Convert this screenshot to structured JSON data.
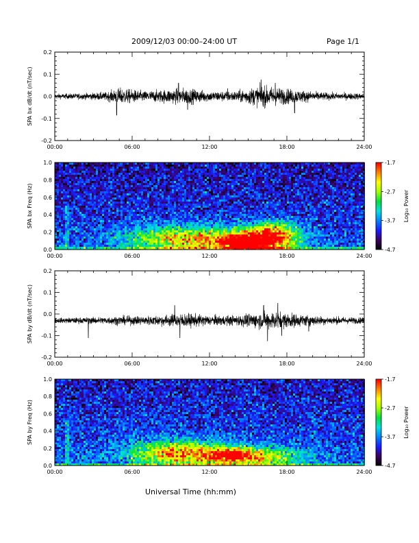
{
  "header": {
    "title": "2009/12/03  00:00–24:00 UT",
    "page": "Page 1/1"
  },
  "footer": {
    "xlabel": "Universal Time (hh:mm)"
  },
  "colors": {
    "trace": "#000000",
    "colormap": [
      "#000000",
      "#3a005a",
      "#1a1aff",
      "#0080ff",
      "#00e0e0",
      "#00e040",
      "#a0ff00",
      "#ffff00",
      "#ff8000",
      "#ff0000"
    ]
  },
  "chart_data": [
    {
      "type": "line",
      "ylabel": "SPA bx dB/dt (nT/sec)",
      "xticks": [
        "00:00",
        "06:00",
        "12:00",
        "18:00",
        "24:00"
      ],
      "xlim": [
        0,
        24
      ],
      "ylim": [
        -0.2,
        0.2
      ],
      "yticks": [
        "-0.2",
        "-0.1",
        "0.0",
        "0.1",
        "0.2"
      ],
      "baseline": 0.0,
      "noise_amplitude_profile": {
        "x": [
          0,
          2,
          4,
          5,
          7,
          9,
          10,
          12,
          14,
          16,
          17,
          19,
          21,
          24
        ],
        "amp": [
          0.012,
          0.014,
          0.02,
          0.04,
          0.025,
          0.035,
          0.04,
          0.025,
          0.025,
          0.05,
          0.045,
          0.03,
          0.018,
          0.015
        ]
      },
      "spikes": [
        {
          "x": 4.8,
          "y": 0.075
        },
        {
          "x": 4.8,
          "y": -0.085
        },
        {
          "x": 9.6,
          "y": 0.06
        },
        {
          "x": 10.3,
          "y": -0.06
        },
        {
          "x": 16.0,
          "y": 0.075
        },
        {
          "x": 16.3,
          "y": -0.05
        },
        {
          "x": 17.1,
          "y": 0.06
        },
        {
          "x": 18.6,
          "y": -0.075
        },
        {
          "x": 13.4,
          "y": 0.035
        }
      ]
    },
    {
      "type": "heatmap",
      "ylabel": "SPA bx Freq (Hz)",
      "xticks": [
        "00:00",
        "06:00",
        "12:00",
        "18:00",
        "24:00"
      ],
      "xlim": [
        0,
        24
      ],
      "ylim": [
        0,
        1.0
      ],
      "yticks": [
        "0.0",
        "0.2",
        "0.4",
        "0.6",
        "0.8",
        "1.0"
      ],
      "colorbar": {
        "label": "Log₁₀ Power",
        "range": [
          -4.7,
          -1.7
        ],
        "ticks": [
          "-1.7",
          "-2.7",
          "-3.7",
          "-4.7"
        ]
      },
      "background_level": -3.85,
      "enhancements": [
        {
          "x": 10.0,
          "f": 0.12,
          "sx": 3.0,
          "sf": 0.1,
          "v": 0.55
        },
        {
          "x": 16.0,
          "f": 0.1,
          "sx": 2.0,
          "sf": 0.1,
          "v": 0.7
        },
        {
          "x": 14.5,
          "f": 0.08,
          "sx": 1.5,
          "sf": 0.05,
          "v": 0.5
        },
        {
          "x": 17.0,
          "f": 0.22,
          "sx": 1.2,
          "sf": 0.08,
          "v": 0.35
        }
      ]
    },
    {
      "type": "line",
      "ylabel": "SPA by dB/dt (nT/sec)",
      "xticks": [
        "00:00",
        "06:00",
        "12:00",
        "18:00",
        "24:00"
      ],
      "xlim": [
        0,
        24
      ],
      "ylim": [
        -0.2,
        0.2
      ],
      "yticks": [
        "-0.2",
        "-0.1",
        "0.0",
        "0.1",
        "0.2"
      ],
      "baseline": -0.03,
      "noise_amplitude_profile": {
        "x": [
          0,
          2,
          4,
          5,
          7,
          9,
          10,
          12,
          14,
          16,
          17,
          19,
          21,
          24
        ],
        "amp": [
          0.012,
          0.015,
          0.018,
          0.022,
          0.022,
          0.03,
          0.035,
          0.025,
          0.025,
          0.04,
          0.045,
          0.03,
          0.02,
          0.015
        ]
      },
      "spikes": [
        {
          "x": 2.6,
          "y": 0.03
        },
        {
          "x": 2.6,
          "y": -0.11
        },
        {
          "x": 9.3,
          "y": 0.04
        },
        {
          "x": 9.7,
          "y": -0.11
        },
        {
          "x": 16.2,
          "y": 0.04
        },
        {
          "x": 16.5,
          "y": -0.125
        },
        {
          "x": 17.3,
          "y": 0.05
        },
        {
          "x": 17.6,
          "y": -0.1
        },
        {
          "x": 19.7,
          "y": -0.08
        }
      ]
    },
    {
      "type": "heatmap",
      "ylabel": "SPA by Freq (Hz)",
      "xticks": [
        "00:00",
        "06:00",
        "12:00",
        "18:00",
        "24:00"
      ],
      "xlim": [
        0,
        24
      ],
      "ylim": [
        0,
        1.0
      ],
      "yticks": [
        "0.0",
        "0.2",
        "0.4",
        "0.6",
        "0.8",
        "1.0"
      ],
      "colorbar": {
        "label": "Log₁₀ Power",
        "range": [
          -4.7,
          -1.7
        ],
        "ticks": [
          "-1.7",
          "-2.7",
          "-3.7",
          "-4.7"
        ]
      },
      "background_level": -3.8,
      "enhancements": [
        {
          "x": 9.5,
          "f": 0.14,
          "sx": 2.5,
          "sf": 0.1,
          "v": 0.6
        },
        {
          "x": 15.5,
          "f": 0.1,
          "sx": 2.5,
          "sf": 0.08,
          "v": 0.5
        },
        {
          "x": 13.5,
          "f": 0.12,
          "sx": 1.2,
          "sf": 0.05,
          "v": 0.45
        }
      ]
    }
  ]
}
